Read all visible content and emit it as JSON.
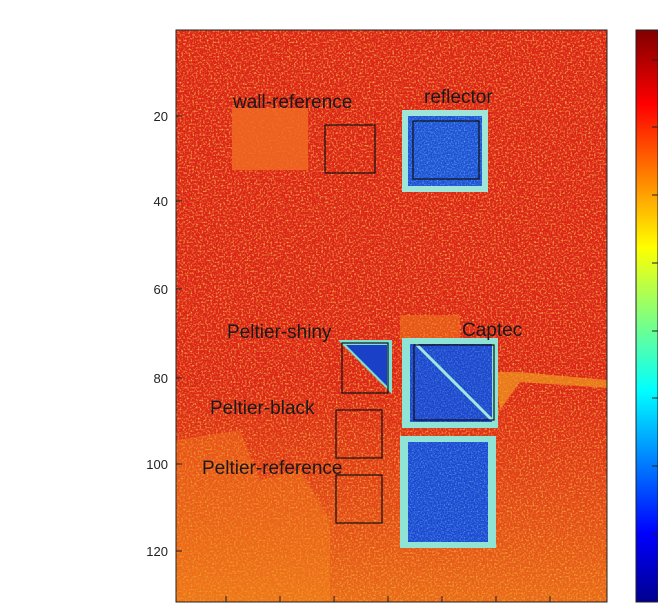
{
  "y_axis": {
    "ticks": [
      "20",
      "40",
      "60",
      "80",
      "100",
      "120"
    ]
  },
  "labels": {
    "wall_reference": "wall-reference",
    "reflector": "reflector",
    "peltier_shiny": "Peltier-shiny",
    "captec": "Captec",
    "peltier_black": "Peltier-black",
    "peltier_reference": "Peltier-reference"
  },
  "colormap": "jet",
  "colors": {
    "hot": "#e0241a",
    "warm": "#ee5a18",
    "cold": "#1f4fd0",
    "edge": "#7ee3d8",
    "box": "#111111"
  }
}
